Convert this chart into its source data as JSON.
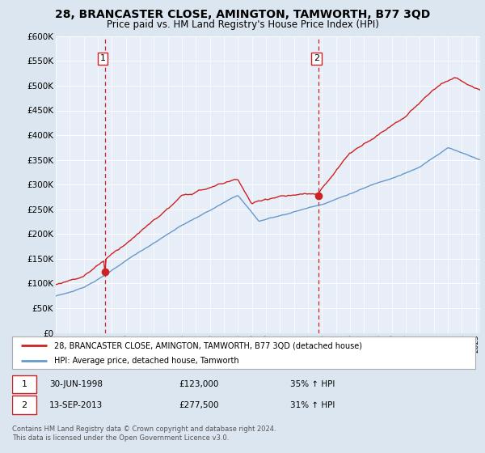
{
  "title": "28, BRANCASTER CLOSE, AMINGTON, TAMWORTH, B77 3QD",
  "subtitle": "Price paid vs. HM Land Registry's House Price Index (HPI)",
  "outer_bg": "#dce6f1",
  "plot_bg": "#e8eef7",
  "ylim": [
    0,
    600000
  ],
  "yticks": [
    0,
    50000,
    100000,
    150000,
    200000,
    250000,
    300000,
    350000,
    400000,
    450000,
    500000,
    550000,
    600000
  ],
  "sale1_date": "30-JUN-1998",
  "sale1_price": 123000,
  "sale1_pct": "35% ↑ HPI",
  "sale1_x": 1998.5,
  "sale1_y": 123000,
  "sale2_date": "13-SEP-2013",
  "sale2_price": 277500,
  "sale2_pct": "31% ↑ HPI",
  "sale2_x": 2013.75,
  "sale2_y": 277500,
  "legend_line1": "28, BRANCASTER CLOSE, AMINGTON, TAMWORTH, B77 3QD (detached house)",
  "legend_line2": "HPI: Average price, detached house, Tamworth",
  "footer": "Contains HM Land Registry data © Crown copyright and database right 2024.\nThis data is licensed under the Open Government Licence v3.0.",
  "red_color": "#cc2222",
  "blue_color": "#6699cc",
  "grid_color": "#ffffff",
  "dashed_color": "#cc2222",
  "xmin": 1995.0,
  "xmax": 2025.3
}
